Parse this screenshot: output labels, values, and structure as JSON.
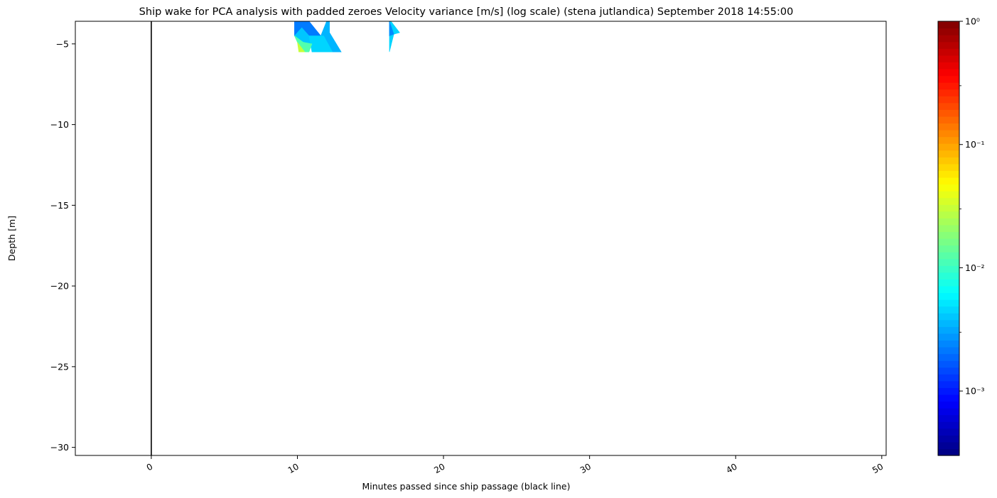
{
  "chart_data": {
    "type": "heatmap",
    "title": "Ship wake for PCA analysis with padded zeroes Velocity variance [m/s] (log scale) (stena jutlandica) September 2018 14:55:00",
    "xlabel": "Minutes passed since ship passage (black line)",
    "ylabel": "Depth [m]",
    "xlim": [
      -5.2,
      50.3
    ],
    "ylim": [
      -30.5,
      -3.6
    ],
    "x_ticks": [
      0,
      10,
      20,
      30,
      40,
      50
    ],
    "x_tick_labels": [
      "0",
      "10",
      "20",
      "30",
      "40",
      "50"
    ],
    "x_tick_rotation_deg": 30,
    "y_ticks": [
      -5,
      -10,
      -15,
      -20,
      -25,
      -30
    ],
    "y_tick_labels": [
      "−5",
      "−10",
      "−15",
      "−20",
      "−25",
      "−30"
    ],
    "ship_passage_line": {
      "x": 0,
      "color": "#000000"
    },
    "colorbar": {
      "colormap": "jet",
      "scale": "log",
      "range": [
        0.0003,
        1
      ],
      "ticks": [
        0.001,
        0.01,
        0.1,
        1
      ],
      "tick_labels": [
        "10⁻³",
        "10⁻²",
        "10⁻¹",
        "10⁰"
      ],
      "minor_ticks": [
        0.003,
        0.03,
        0.3
      ]
    },
    "wake_patches": [
      {
        "value": 0.0022,
        "points": [
          [
            9.8,
            -3.6
          ],
          [
            10.8,
            -3.6
          ],
          [
            11.6,
            -4.5
          ],
          [
            10.8,
            -4.5
          ],
          [
            10.3,
            -4.0
          ],
          [
            9.8,
            -4.5
          ]
        ]
      },
      {
        "value": 0.0035,
        "points": [
          [
            11.6,
            -4.5
          ],
          [
            12.0,
            -3.6
          ],
          [
            12.2,
            -3.6
          ],
          [
            12.2,
            -4.3
          ],
          [
            13.0,
            -5.5
          ],
          [
            12.4,
            -5.5
          ],
          [
            11.8,
            -4.5
          ]
        ]
      },
      {
        "value": 0.004,
        "points": [
          [
            9.8,
            -4.5
          ],
          [
            10.3,
            -4.0
          ],
          [
            10.8,
            -4.5
          ],
          [
            11.0,
            -5.0
          ],
          [
            10.4,
            -4.9
          ]
        ]
      },
      {
        "value": 0.0045,
        "points": [
          [
            11.6,
            -4.5
          ],
          [
            11.8,
            -4.5
          ],
          [
            12.4,
            -5.5
          ],
          [
            11.0,
            -5.5
          ],
          [
            10.8,
            -4.5
          ]
        ]
      },
      {
        "value": 0.012,
        "points": [
          [
            9.8,
            -4.5
          ],
          [
            10.4,
            -4.9
          ],
          [
            11.0,
            -5.0
          ],
          [
            10.8,
            -5.5
          ],
          [
            10.5,
            -5.5
          ],
          [
            10.0,
            -4.9
          ]
        ]
      },
      {
        "value": 0.03,
        "points": [
          [
            10.0,
            -4.9
          ],
          [
            10.5,
            -5.5
          ],
          [
            10.1,
            -5.5
          ]
        ]
      },
      {
        "value": 0.0045,
        "points": [
          [
            16.3,
            -3.6
          ],
          [
            16.4,
            -3.6
          ],
          [
            17.0,
            -4.3
          ],
          [
            16.6,
            -4.4
          ],
          [
            16.3,
            -5.5
          ]
        ]
      },
      {
        "value": 0.0025,
        "points": [
          [
            16.3,
            -3.6
          ],
          [
            16.3,
            -4.5
          ],
          [
            16.6,
            -4.4
          ]
        ]
      }
    ]
  }
}
